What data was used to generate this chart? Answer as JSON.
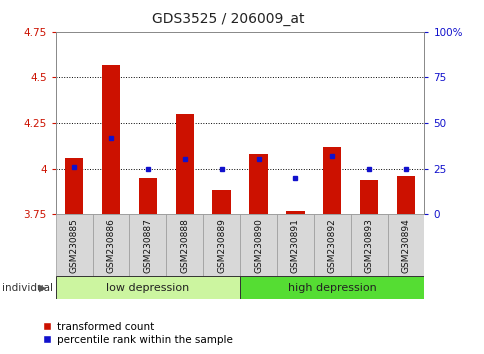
{
  "title": "GDS3525 / 206009_at",
  "samples": [
    "GSM230885",
    "GSM230886",
    "GSM230887",
    "GSM230888",
    "GSM230889",
    "GSM230890",
    "GSM230891",
    "GSM230892",
    "GSM230893",
    "GSM230894"
  ],
  "red_values": [
    4.06,
    4.57,
    3.95,
    4.3,
    3.88,
    4.08,
    3.77,
    4.12,
    3.94,
    3.96
  ],
  "blue_values": [
    26,
    42,
    25,
    30,
    25,
    30,
    20,
    32,
    25,
    25
  ],
  "ylim_left": [
    3.75,
    4.75
  ],
  "ylim_right": [
    0,
    100
  ],
  "yticks_left": [
    3.75,
    4.0,
    4.25,
    4.5,
    4.75
  ],
  "yticks_right": [
    0,
    25,
    50,
    75,
    100
  ],
  "ytick_labels_left": [
    "3.75",
    "4",
    "4.25",
    "4.5",
    "4.75"
  ],
  "ytick_labels_right": [
    "0",
    "25",
    "50",
    "75",
    "100%"
  ],
  "grid_lines": [
    4.0,
    4.25,
    4.5
  ],
  "group_labels": [
    "low depression",
    "high depression"
  ],
  "group_splits": [
    0,
    5,
    10
  ],
  "group_colors": [
    "#ccf5a0",
    "#55dd33"
  ],
  "bar_color": "#cc1100",
  "dot_color": "#1111cc",
  "bar_width": 0.5,
  "legend_red": "transformed count",
  "legend_blue": "percentile rank within the sample",
  "individual_label": "individual",
  "left_tick_color": "#cc1100",
  "right_tick_color": "#1111cc",
  "title_fontsize": 10,
  "tick_fontsize": 7.5,
  "sample_fontsize": 6.5
}
